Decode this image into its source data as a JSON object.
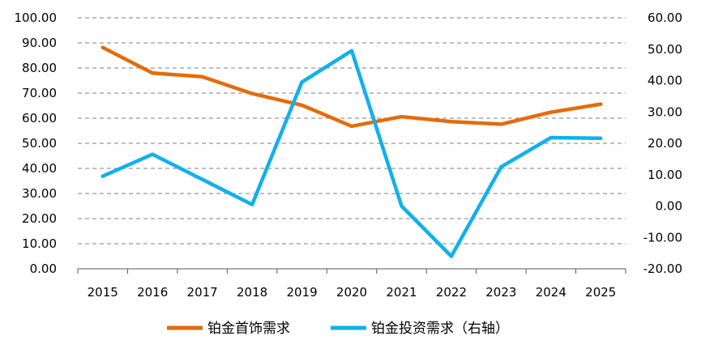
{
  "chart_data": {
    "type": "line",
    "categories": [
      "2015",
      "2016",
      "2017",
      "2018",
      "2019",
      "2020",
      "2021",
      "2022",
      "2023",
      "2024",
      "2025"
    ],
    "series": [
      {
        "name": "铂金首饰需求",
        "axis": "left",
        "color": "#E46C0A",
        "values": [
          88.2,
          78.0,
          76.5,
          69.8,
          65.2,
          56.8,
          60.6,
          58.6,
          57.6,
          62.4,
          65.6
        ]
      },
      {
        "name": "铂金投资需求（右轴）",
        "axis": "right",
        "color": "#11B0EE",
        "values": [
          9.5,
          16.5,
          8.5,
          0.5,
          39.5,
          49.5,
          0.0,
          -16.0,
          12.5,
          21.8,
          21.6
        ]
      }
    ],
    "y_left": {
      "lim": [
        0,
        100
      ],
      "ticks": [
        "0.00",
        "10.00",
        "20.00",
        "30.00",
        "40.00",
        "50.00",
        "60.00",
        "70.00",
        "80.00",
        "90.00",
        "100.00"
      ]
    },
    "y_right": {
      "lim": [
        -20,
        60
      ],
      "ticks": [
        "-20.00",
        "-10.00",
        "0.00",
        "10.00",
        "20.00",
        "30.00",
        "40.00",
        "50.00",
        "60.00"
      ]
    },
    "grid": "horizontal-dashed",
    "legend": "bottom"
  }
}
